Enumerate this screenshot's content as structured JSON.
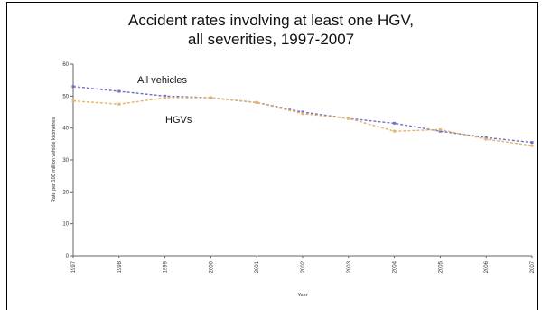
{
  "chart_data": {
    "type": "line",
    "title_line1": "Accident rates involving at least one HGV,",
    "title_line2": "all severities, 1997-2007",
    "xlabel": "Year",
    "ylabel": "Rate per 100 million vehicle kilometres",
    "x": [
      "1997",
      "1998",
      "1999",
      "2000",
      "2001",
      "2002",
      "2003",
      "2004",
      "2005",
      "2006",
      "2007"
    ],
    "y_ticks": [
      "0",
      "10",
      "20",
      "30",
      "40",
      "50",
      "60"
    ],
    "ylim": [
      0,
      60
    ],
    "grid": false,
    "series": [
      {
        "name": "All vehicles",
        "values": [
          53,
          51.5,
          50,
          49.5,
          48,
          45,
          43,
          41.5,
          39,
          37,
          35.5
        ],
        "color": "#6f6fc8"
      },
      {
        "name": "HGVs",
        "values": [
          48.5,
          47.5,
          49.5,
          49.5,
          48,
          44.5,
          43,
          39,
          39.5,
          36.5,
          34.5
        ],
        "color": "#e6b46a"
      }
    ]
  }
}
